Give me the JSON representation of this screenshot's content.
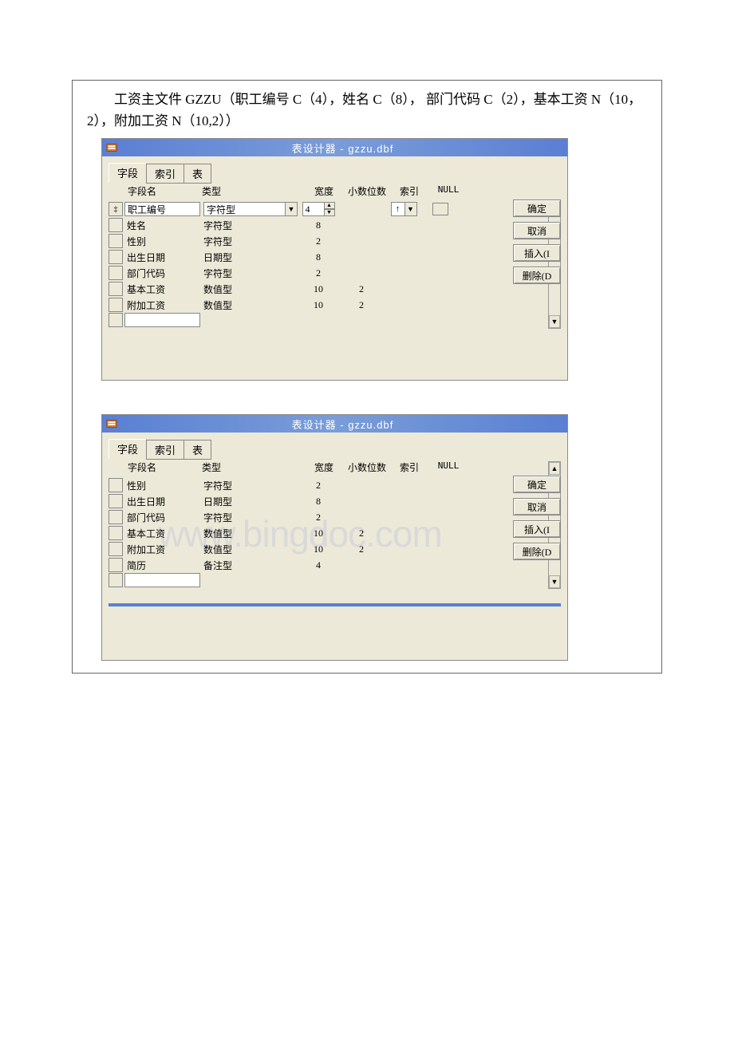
{
  "description": "工资主文件 GZZU（职工编号 C（4），姓名 C（8）， 部门代码 C（2），基本工资 N（10，2），附加工资 N（10,2））",
  "window1": {
    "title": "表设计器 - gzzu.dbf",
    "tabs": [
      "字段",
      "索引",
      "表"
    ],
    "active_tab": 0,
    "headers": {
      "name": "字段名",
      "type": "类型",
      "width": "宽度",
      "dec": "小数位数",
      "idx": "索引",
      "null": "NULL"
    },
    "active_row_idx": 0,
    "active_row": {
      "name": "职工编号",
      "type": "字符型",
      "width": "4",
      "idx": "↑"
    },
    "rows": [
      {
        "name": "姓名",
        "type": "字符型",
        "width": "8",
        "dec": ""
      },
      {
        "name": "性别",
        "type": "字符型",
        "width": "2",
        "dec": ""
      },
      {
        "name": "出生日期",
        "type": "日期型",
        "width": "8",
        "dec": ""
      },
      {
        "name": "部门代码",
        "type": "字符型",
        "width": "2",
        "dec": ""
      },
      {
        "name": "基本工资",
        "type": "数值型",
        "width": "10",
        "dec": "2"
      },
      {
        "name": "附加工资",
        "type": "数值型",
        "width": "10",
        "dec": "2"
      }
    ],
    "buttons": {
      "ok": "确定",
      "cancel": "取消",
      "insert": "插入(I",
      "delete": "删除(D"
    }
  },
  "window2": {
    "title": "表设计器 - gzzu.dbf",
    "tabs": [
      "字段",
      "索引",
      "表"
    ],
    "active_tab": 0,
    "headers": {
      "name": "字段名",
      "type": "类型",
      "width": "宽度",
      "dec": "小数位数",
      "idx": "索引",
      "null": "NULL"
    },
    "rows": [
      {
        "name": "性别",
        "type": "字符型",
        "width": "2",
        "dec": ""
      },
      {
        "name": "出生日期",
        "type": "日期型",
        "width": "8",
        "dec": ""
      },
      {
        "name": "部门代码",
        "type": "字符型",
        "width": "2",
        "dec": ""
      },
      {
        "name": "基本工资",
        "type": "数值型",
        "width": "10",
        "dec": "2"
      },
      {
        "name": "附加工资",
        "type": "数值型",
        "width": "10",
        "dec": "2"
      },
      {
        "name": "简历",
        "type": "备注型",
        "width": "4",
        "dec": ""
      }
    ],
    "buttons": {
      "ok": "确定",
      "cancel": "取消",
      "insert": "插入(I",
      "delete": "删除(D"
    }
  },
  "watermark": "www.bingdoc.com"
}
